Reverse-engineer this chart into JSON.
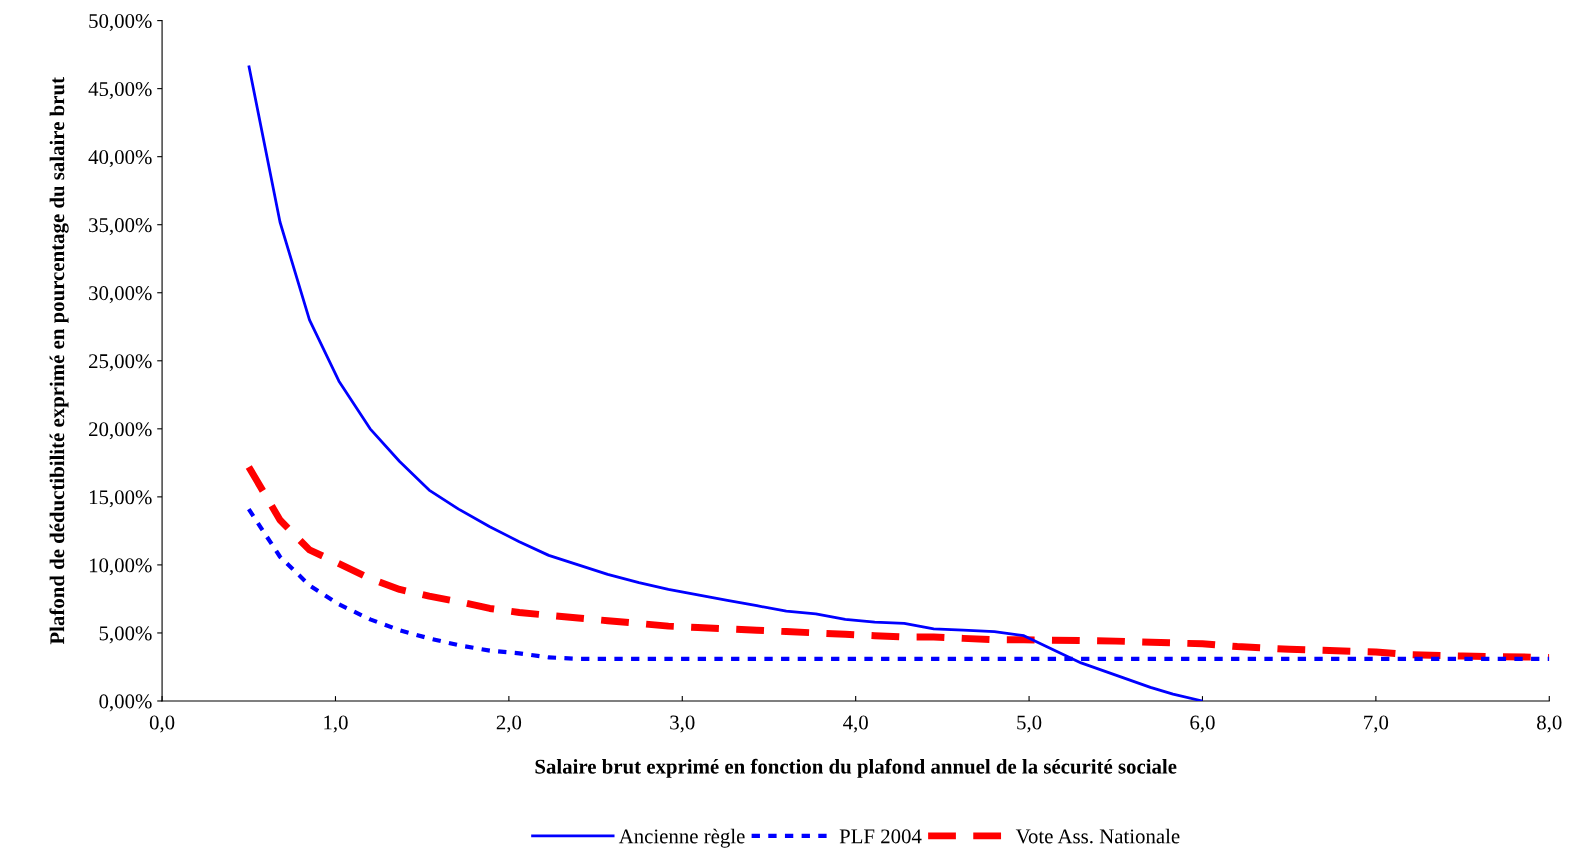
{
  "chart_data": {
    "type": "line",
    "xlabel": "Salaire brut exprimé en fonction du plafond annuel de la sécurité sociale",
    "ylabel": "Plafond de déductibilité exprimé en pourcentage du salaire brut",
    "xlim": [
      0,
      8
    ],
    "ylim": [
      0,
      50
    ],
    "xticks": [
      {
        "value": 0,
        "label": "0,0"
      },
      {
        "value": 1,
        "label": "1,0"
      },
      {
        "value": 2,
        "label": "2,0"
      },
      {
        "value": 3,
        "label": "3,0"
      },
      {
        "value": 4,
        "label": "4,0"
      },
      {
        "value": 5,
        "label": "5,0"
      },
      {
        "value": 6,
        "label": "6,0"
      },
      {
        "value": 7,
        "label": "7,0"
      },
      {
        "value": 8,
        "label": "8,0"
      }
    ],
    "yticks": [
      {
        "value": 0,
        "label": "0,00%"
      },
      {
        "value": 5,
        "label": "5,00%"
      },
      {
        "value": 10,
        "label": "10,00%"
      },
      {
        "value": 15,
        "label": "15,00%"
      },
      {
        "value": 20,
        "label": "20,00%"
      },
      {
        "value": 25,
        "label": "25,00%"
      },
      {
        "value": 30,
        "label": "30,00%"
      },
      {
        "value": 35,
        "label": "35,00%"
      },
      {
        "value": 40,
        "label": "40,00%"
      },
      {
        "value": 45,
        "label": "45,00%"
      },
      {
        "value": 50,
        "label": "50,00%"
      }
    ],
    "legend": "bottom",
    "grid": false,
    "marker": "none",
    "series": [
      {
        "name": "Ancienne règle",
        "color": "#0000ff",
        "line_style": "solid",
        "x": [
          0.5,
          0.68,
          0.85,
          1.02,
          1.2,
          1.37,
          1.54,
          1.71,
          1.89,
          2.06,
          2.23,
          2.4,
          2.57,
          2.75,
          2.92,
          3.09,
          3.26,
          3.43,
          3.6,
          3.77,
          3.94,
          4.11,
          4.28,
          4.45,
          4.62,
          4.8,
          4.97,
          5.1,
          5.3,
          5.5,
          5.7,
          5.83,
          6.0
        ],
        "values": [
          46.7,
          35.2,
          28,
          23.5,
          20,
          17.6,
          15.5,
          14.1,
          12.8,
          11.7,
          10.7,
          10,
          9.3,
          8.7,
          8.2,
          7.8,
          7.4,
          7,
          6.6,
          6.4,
          6,
          5.8,
          5.7,
          5.3,
          5.2,
          5.1,
          4.8,
          4,
          2.8,
          1.9,
          1,
          0.5,
          0
        ]
      },
      {
        "name": "PLF 2004",
        "color": "#0000ff",
        "line_style": "dotted",
        "x": [
          0.5,
          0.68,
          0.85,
          1.02,
          1.2,
          1.37,
          1.54,
          1.71,
          1.89,
          2.06,
          2.23,
          2.4,
          3.0,
          4.0,
          5.0,
          6.0,
          7.0,
          8.0
        ],
        "values": [
          14.1,
          10.6,
          8.5,
          7.1,
          6,
          5.2,
          4.6,
          4.1,
          3.7,
          3.5,
          3.2,
          3.1,
          3.1,
          3.1,
          3.1,
          3.1,
          3.1,
          3.1
        ]
      },
      {
        "name": "Vote Ass. Nationale",
        "color": "#ff0000",
        "line_style": "dashed",
        "x": [
          0.5,
          0.68,
          0.85,
          1.02,
          1.2,
          1.37,
          1.54,
          1.71,
          1.89,
          2.06,
          2.23,
          2.4,
          2.57,
          2.75,
          2.92,
          3.09,
          3.26,
          3.43,
          3.6,
          3.77,
          3.94,
          4.11,
          4.28,
          4.45,
          4.62,
          4.8,
          4.97,
          5.5,
          6.0,
          6.2,
          6.5,
          7.0,
          7.2,
          7.5,
          8.0
        ],
        "values": [
          17.2,
          13.3,
          11.1,
          10.1,
          9.0,
          8.2,
          7.7,
          7.3,
          6.8,
          6.5,
          6.3,
          6.1,
          5.9,
          5.7,
          5.5,
          5.4,
          5.3,
          5.2,
          5.1,
          5.0,
          4.9,
          4.8,
          4.7,
          4.7,
          4.6,
          4.5,
          4.5,
          4.4,
          4.2,
          4.0,
          3.8,
          3.6,
          3.4,
          3.3,
          3.2
        ]
      }
    ]
  }
}
